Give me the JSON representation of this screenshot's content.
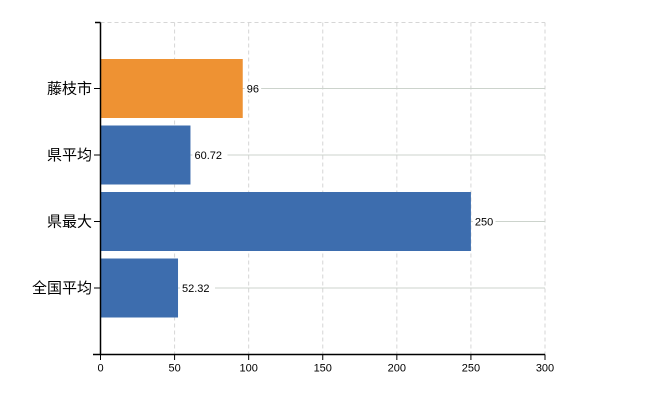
{
  "chart_data": {
    "type": "bar",
    "orientation": "horizontal",
    "title": "",
    "categories": [
      "藤枝市",
      "県平均",
      "県最大",
      "全国平均"
    ],
    "values": [
      96,
      60.72,
      250,
      52.32
    ],
    "value_labels": [
      "96",
      "60.72",
      "250",
      "52.32"
    ],
    "series": [
      {
        "name": "values",
        "values": [
          96,
          60.72,
          250,
          52.32
        ]
      }
    ],
    "bar_colors": [
      "#ee9233",
      "#3d6dae",
      "#3d6dae",
      "#3d6dae"
    ],
    "xlim": [
      0,
      300
    ],
    "xticks": [
      0,
      50,
      100,
      150,
      200,
      250,
      300
    ],
    "xtick_labels": [
      "0",
      "50",
      "100",
      "150",
      "200",
      "250",
      "300"
    ],
    "grid": {
      "vertical": true,
      "horizontal": true
    },
    "legend": "none",
    "colors": {
      "axis": "#000000",
      "text": "#000000",
      "grid_vertical": "#d6d6d6",
      "grid_horizontal": "#ccd3cc",
      "background": "#ffffff",
      "highlight_bar": "#ee9233",
      "default_bar": "#3d6dae"
    }
  }
}
